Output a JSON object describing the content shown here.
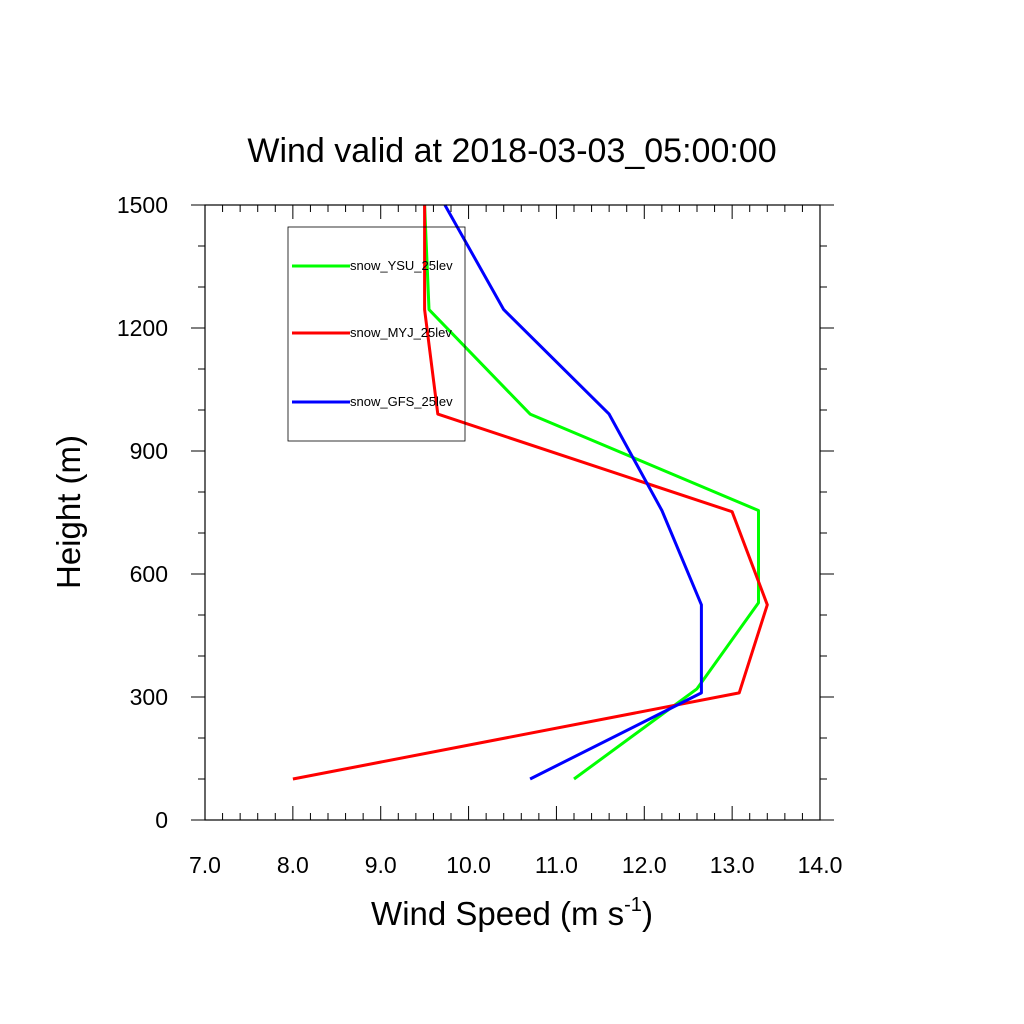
{
  "chart_data": {
    "type": "line",
    "title": "Wind valid at 2018-03-03_05:00:00",
    "xlabel": "Wind Speed (m s",
    "xlabel_sup": "-1",
    "xlabel_close": ")",
    "ylabel": "Height (m)",
    "xlim": [
      7.0,
      14.0
    ],
    "ylim": [
      0,
      1500
    ],
    "xticks": [
      "7.0",
      "8.0",
      "9.0",
      "10.0",
      "11.0",
      "12.0",
      "13.0",
      "14.0"
    ],
    "yticks": [
      "0",
      "300",
      "600",
      "900",
      "1200",
      "1500"
    ],
    "legend_position": "top-left",
    "grid": false,
    "series": [
      {
        "name": "snow_YSU_25lev",
        "color": "#00ff00",
        "points": [
          {
            "x": 11.2,
            "y": 100
          },
          {
            "x": 12.6,
            "y": 320
          },
          {
            "x": 13.3,
            "y": 530
          },
          {
            "x": 13.3,
            "y": 755
          },
          {
            "x": 10.7,
            "y": 990
          },
          {
            "x": 9.55,
            "y": 1245
          },
          {
            "x": 9.5,
            "y": 1500
          }
        ]
      },
      {
        "name": "snow_MYJ_25lev",
        "color": "#ff0000",
        "points": [
          {
            "x": 8.0,
            "y": 100
          },
          {
            "x": 13.08,
            "y": 310
          },
          {
            "x": 13.4,
            "y": 525
          },
          {
            "x": 13.0,
            "y": 752
          },
          {
            "x": 9.65,
            "y": 990
          },
          {
            "x": 9.5,
            "y": 1245
          },
          {
            "x": 9.5,
            "y": 1500
          }
        ]
      },
      {
        "name": "snow_GFS_25lev",
        "color": "#0000ff",
        "points": [
          {
            "x": 10.7,
            "y": 100
          },
          {
            "x": 12.65,
            "y": 310
          },
          {
            "x": 12.65,
            "y": 525
          },
          {
            "x": 12.2,
            "y": 755
          },
          {
            "x": 11.6,
            "y": 990
          },
          {
            "x": 10.4,
            "y": 1245
          },
          {
            "x": 9.73,
            "y": 1500
          }
        ]
      }
    ]
  }
}
